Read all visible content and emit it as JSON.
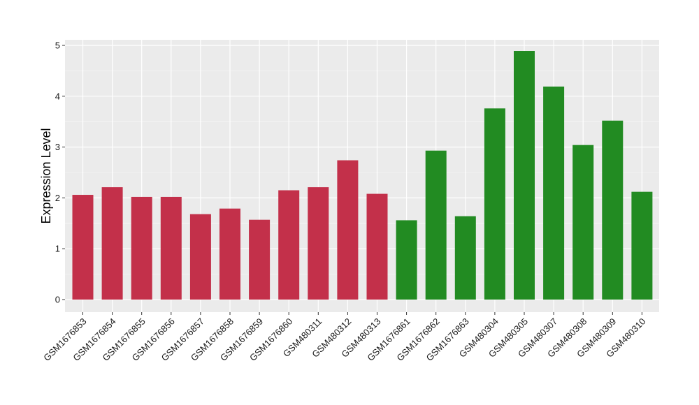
{
  "chart_data": {
    "type": "bar",
    "title": "",
    "xlabel": "",
    "ylabel": "Expression Level",
    "ylim": [
      0,
      5.15
    ],
    "yticks": [
      0,
      1,
      2,
      3,
      4,
      5
    ],
    "grid": true,
    "legend": "none",
    "categories": [
      "GSM1676853",
      "GSM1676854",
      "GSM1676855",
      "GSM1676856",
      "GSM1676857",
      "GSM1676858",
      "GSM1676859",
      "GSM1676860",
      "GSM480311",
      "GSM480312",
      "GSM480313",
      "GSM1676861",
      "GSM1676862",
      "GSM1676863",
      "GSM480304",
      "GSM480305",
      "GSM480307",
      "GSM480308",
      "GSM480309",
      "GSM480310"
    ],
    "values": [
      2.06,
      2.21,
      2.02,
      2.02,
      1.68,
      1.79,
      1.57,
      2.15,
      2.21,
      2.74,
      2.08,
      1.56,
      2.93,
      1.64,
      3.76,
      4.89,
      4.19,
      3.04,
      3.52,
      2.12
    ],
    "groups": [
      "red",
      "red",
      "red",
      "red",
      "red",
      "red",
      "red",
      "red",
      "red",
      "red",
      "red",
      "green",
      "green",
      "green",
      "green",
      "green",
      "green",
      "green",
      "green",
      "green"
    ],
    "colors": {
      "red": "#C3304A",
      "green": "#228B22"
    }
  }
}
